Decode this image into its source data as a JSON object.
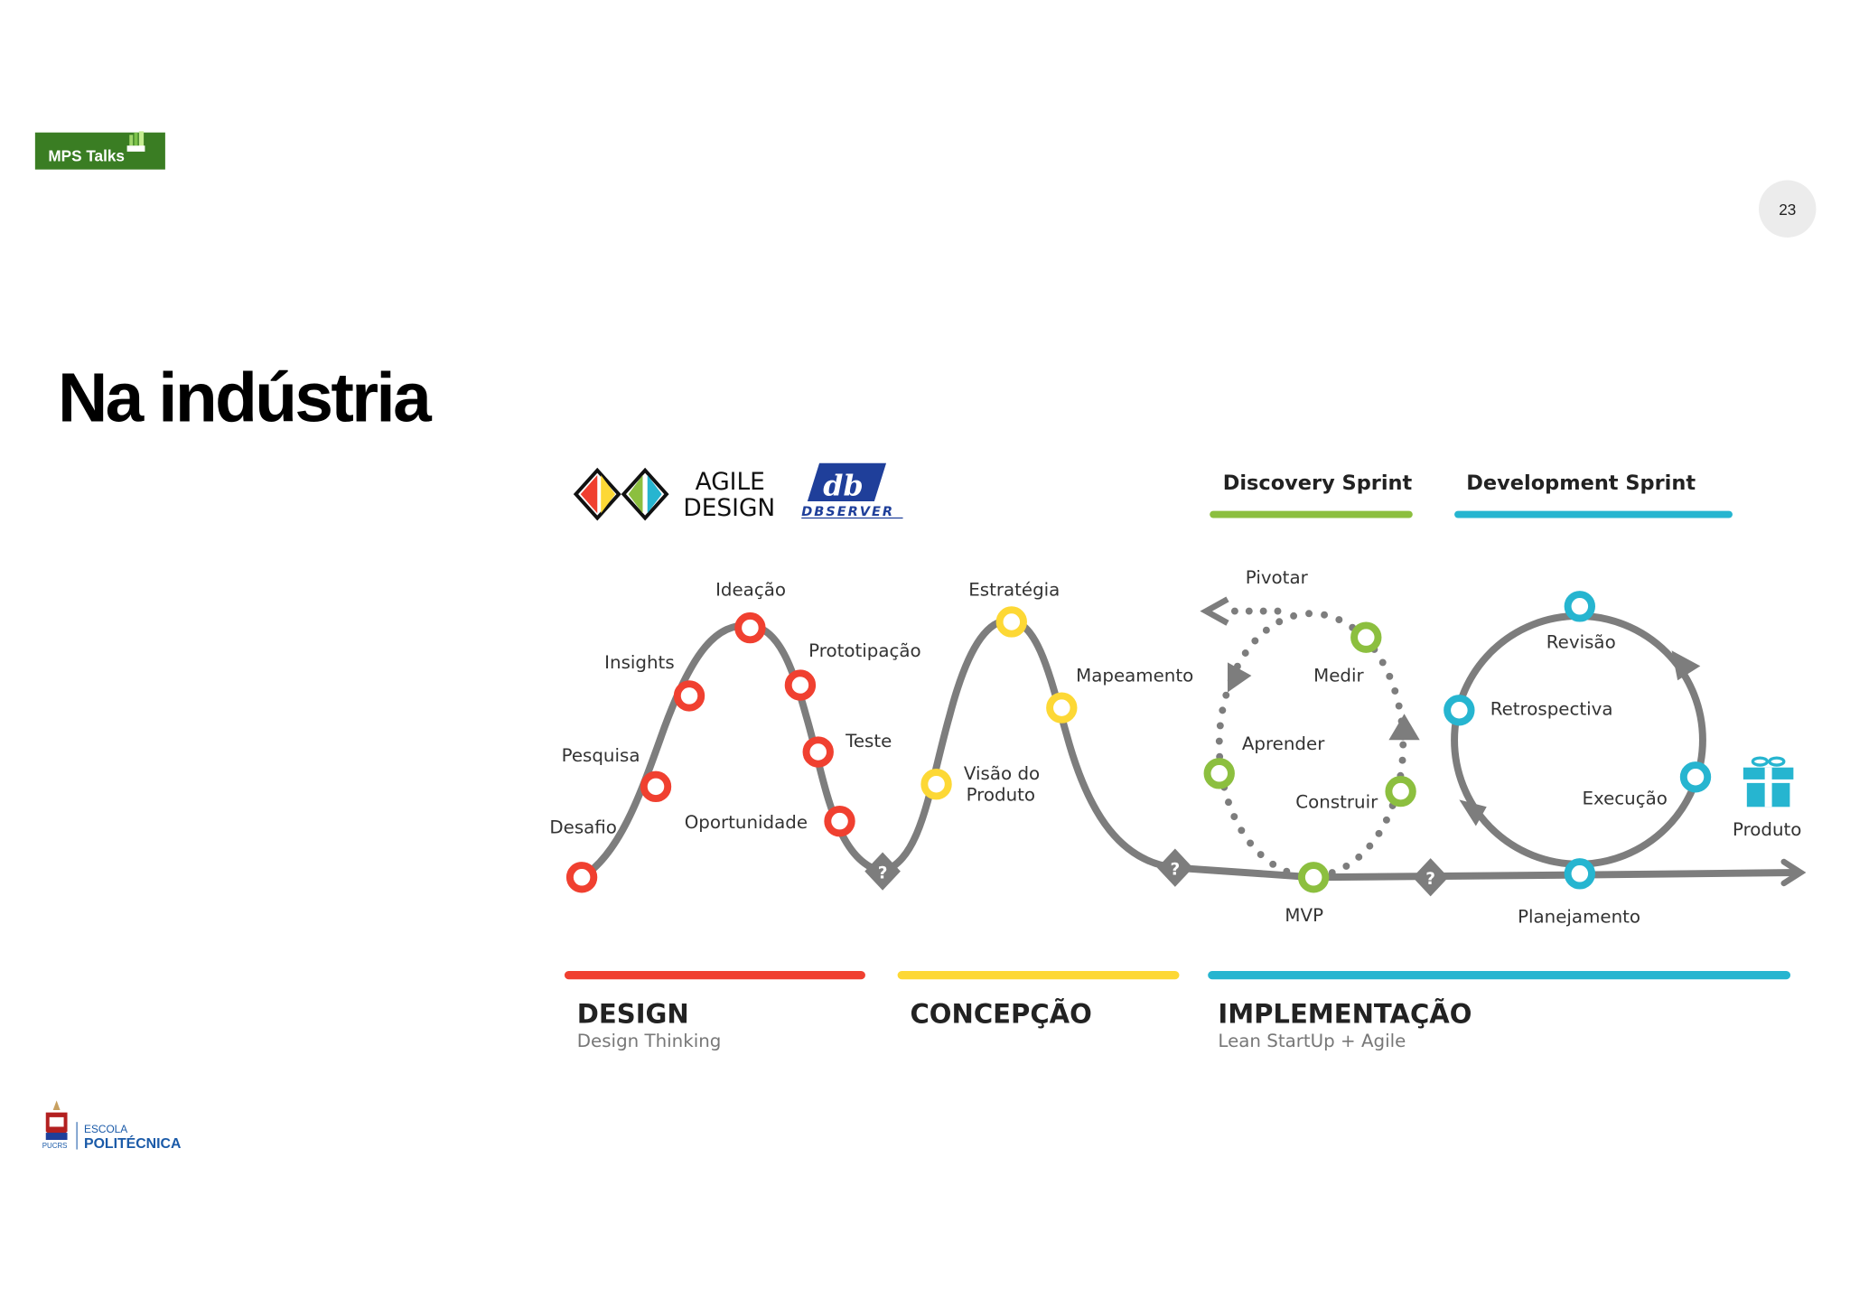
{
  "header": {
    "logo_text": "MPS Talks",
    "page_number": "23"
  },
  "title": "Na indústria",
  "logos": {
    "agile_line1": "AGILE",
    "agile_line2": "DESIGN",
    "dbserver": "DBSERVER",
    "dbserver_mark": "db"
  },
  "sprints": [
    {
      "label": "Discovery Sprint",
      "color": "#8cbf3f"
    },
    {
      "label": "Development Sprint",
      "color": "#26b5d0"
    }
  ],
  "design_nodes": [
    "Desafio",
    "Pesquisa",
    "Insights",
    "Ideação",
    "Prototipação",
    "Teste",
    "Oportunidade"
  ],
  "concepcao_nodes": [
    "Visão do",
    "Produto",
    "Estratégia",
    "Mapeamento"
  ],
  "discovery_nodes": [
    "Pivotar",
    "Medir",
    "Aprender",
    "Construir",
    "MVP"
  ],
  "development_nodes": [
    "Revisão",
    "Retrospectiva",
    "Execução",
    "Planejamento"
  ],
  "product_label": "Produto",
  "decision_mark": "?",
  "phases": [
    {
      "title": "DESIGN",
      "subtitle": "Design Thinking",
      "color": "#f04030"
    },
    {
      "title": "CONCEPÇÃO",
      "subtitle": "",
      "color": "#fdd835"
    },
    {
      "title": "IMPLEMENTAÇÃO",
      "subtitle": "Lean StartUp + Agile",
      "color": "#26b5d0"
    }
  ],
  "footer": {
    "school_line1": "ESCOLA",
    "school_line2": "POLITÉCNICA",
    "university": "PUCRS"
  },
  "colors": {
    "gray": "#7d7d7d",
    "green_logo": "#3a7d23",
    "blue_logo": "#1f3f9a"
  }
}
